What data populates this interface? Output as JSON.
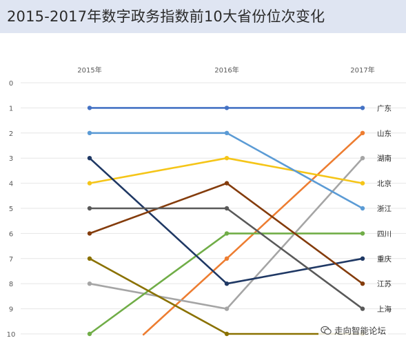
{
  "title": "2015-2017年数字政务指数前10大省份位次变化",
  "chart_data": {
    "type": "line",
    "x": [
      "2015年",
      "2016年",
      "2017年"
    ],
    "y_ticks": [
      0,
      1,
      2,
      3,
      4,
      5,
      6,
      7,
      8,
      9,
      10
    ],
    "ylim": [
      0,
      10
    ],
    "y_inverted": true,
    "grid": true,
    "series": [
      {
        "name": "广东",
        "color": "#4472c4",
        "values": [
          1,
          1,
          1
        ]
      },
      {
        "name": "山东",
        "color": "#ed7d31",
        "values": [
          10.7,
          7,
          2
        ]
      },
      {
        "name": "湖南",
        "color": "#a5a5a5",
        "values": [
          8,
          9,
          3
        ]
      },
      {
        "name": "北京",
        "color": "#f5c518",
        "values": [
          4,
          3,
          4
        ]
      },
      {
        "name": "浙江",
        "color": "#5b9bd5",
        "values": [
          2,
          2,
          5
        ]
      },
      {
        "name": "四川",
        "color": "#70ad47",
        "values": [
          10,
          6,
          6
        ]
      },
      {
        "name": "重庆",
        "color": "#1f3864",
        "values": [
          3,
          8,
          7
        ]
      },
      {
        "name": "江苏",
        "color": "#843c0c",
        "values": [
          6,
          4,
          8
        ]
      },
      {
        "name": "上海",
        "color": "#595959",
        "values": [
          5,
          5,
          9
        ]
      },
      {
        "name": "",
        "color": "#8a7100",
        "values": [
          7,
          10,
          10
        ]
      }
    ]
  },
  "watermark": {
    "text": "走向智能论坛",
    "icon": "wechat-icon"
  }
}
